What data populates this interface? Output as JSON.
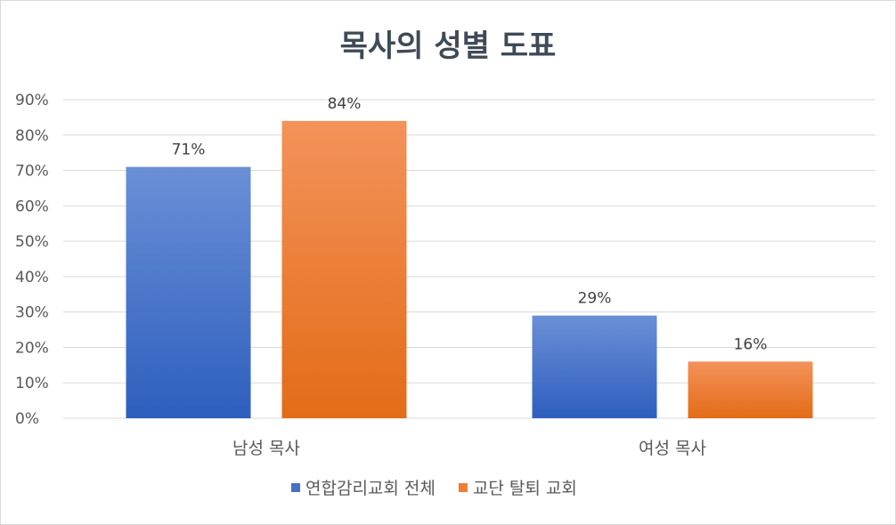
{
  "chart_data": {
    "type": "bar",
    "title": "목사의 성별 도표",
    "categories": [
      "남성 목사",
      "여성 목사"
    ],
    "series": [
      {
        "name": "연합감리교회 전체",
        "values": [
          71,
          29
        ],
        "color": "#4472c4"
      },
      {
        "name": "교단 탈퇴 교회",
        "values": [
          84,
          16
        ],
        "color": "#ed7d31"
      }
    ],
    "value_suffix": "%",
    "ylim": [
      0,
      90
    ],
    "yticks": [
      0,
      10,
      20,
      30,
      40,
      50,
      60,
      70,
      80,
      90
    ],
    "ytick_labels": [
      "0%",
      "10%",
      "20%",
      "30%",
      "40%",
      "50%",
      "60%",
      "70%",
      "80%",
      "90%"
    ],
    "data_labels": [
      [
        "71%",
        "29%"
      ],
      [
        "84%",
        "16%"
      ]
    ],
    "grid": true,
    "legend_position": "bottom"
  }
}
